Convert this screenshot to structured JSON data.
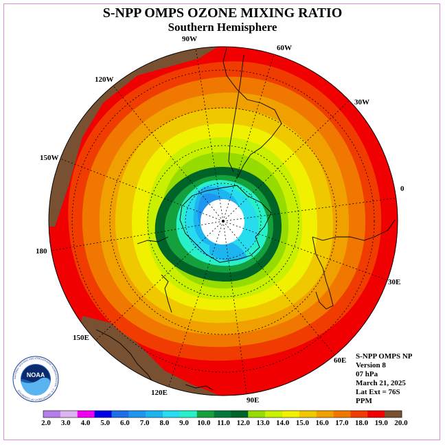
{
  "title": "S-NPP OMPS OZONE MIXING RATIO",
  "subtitle": "Southern Hemisphere",
  "longitude_labels": [
    "0",
    "30W",
    "60W",
    "90W",
    "120W",
    "150W",
    "180",
    "150E",
    "120E",
    "90E",
    "60E",
    "30E"
  ],
  "info": {
    "line1": "S-NPP OMPS NP",
    "line2": "Version 8",
    "line3": "07 hPa",
    "line4": "March 21, 2025",
    "line5": "Lat Ext = 76S",
    "line6": "PPM"
  },
  "logo": {
    "text": "NOAA",
    "ring_text": "NATIONAL OCEANIC AND ATMOSPHERIC ADMINISTRATION · U.S. DEPARTMENT OF COMMERCE"
  },
  "colorbar": {
    "labels": [
      "2.0",
      "3.0",
      "4.0",
      "5.0",
      "6.0",
      "7.0",
      "8.0",
      "9.0",
      "10.0",
      "11.0",
      "12.0",
      "13.0",
      "14.0",
      "15.0",
      "16.0",
      "17.0",
      "18.0",
      "19.0",
      "20.0"
    ],
    "colors": [
      "#b47de8",
      "#dcb4f0",
      "#f000f0",
      "#0000e6",
      "#1e6ee6",
      "#1e96f0",
      "#1eb4f0",
      "#28dcf0",
      "#28f0c8",
      "#14a03c",
      "#00783c",
      "#006428",
      "#96dc00",
      "#c8f000",
      "#f0f000",
      "#f0c800",
      "#f0a000",
      "#f07800",
      "#f03c00",
      "#f00000",
      "#785032"
    ]
  }
}
